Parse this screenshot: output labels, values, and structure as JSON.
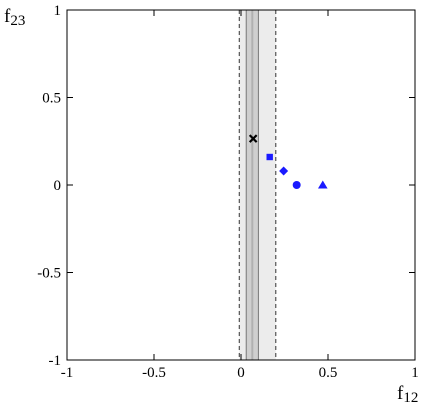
{
  "chart_data": {
    "type": "scatter",
    "xlabel": "f",
    "xlabel_sub": "12",
    "ylabel": "f",
    "ylabel_sub": "23",
    "xlim": [
      -1,
      1
    ],
    "ylim": [
      -1,
      1
    ],
    "x_ticks": [
      {
        "value": -1,
        "label": "-1"
      },
      {
        "value": -0.5,
        "label": "-0.5"
      },
      {
        "value": 0,
        "label": "0"
      },
      {
        "value": 0.5,
        "label": "0.5"
      },
      {
        "value": 1,
        "label": "1"
      }
    ],
    "y_ticks": [
      {
        "value": -1,
        "label": "-1"
      },
      {
        "value": -0.5,
        "label": "-0.5"
      },
      {
        "value": 0,
        "label": "0"
      },
      {
        "value": 0.5,
        "label": "0.5"
      },
      {
        "value": 1,
        "label": "1"
      }
    ],
    "grid": false,
    "bands": [
      {
        "x_min": -0.01,
        "x_max": 0.2,
        "style": "outer",
        "fill": "#ececec",
        "edge": "dashed"
      },
      {
        "x_min": 0.03,
        "x_max": 0.1,
        "style": "inner",
        "fill": "#cfcfcf",
        "edge": "solid"
      }
    ],
    "center_line_x": 0.065,
    "points": [
      {
        "x": 0.07,
        "y": 0.265,
        "marker": "cross",
        "color": "#000000"
      },
      {
        "x": 0.165,
        "y": 0.16,
        "marker": "square",
        "color": "#1a1aff"
      },
      {
        "x": 0.245,
        "y": 0.08,
        "marker": "diamond",
        "color": "#1a1aff"
      },
      {
        "x": 0.32,
        "y": 0.0,
        "marker": "circle",
        "color": "#1a1aff"
      },
      {
        "x": 0.47,
        "y": 0.0,
        "marker": "triangle",
        "color": "#1a1aff"
      }
    ]
  }
}
